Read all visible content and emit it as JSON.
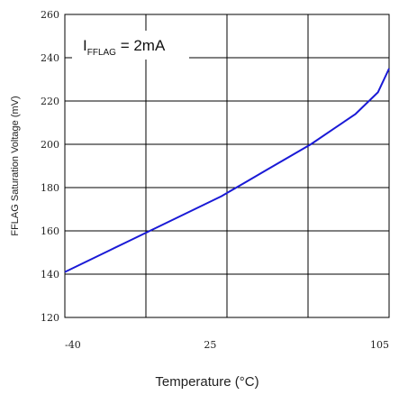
{
  "chart_data": {
    "type": "line",
    "title": "",
    "xlabel": "Temperature (°C)",
    "ylabel": "FFLAG Saturation Voltage (mV)",
    "xlim": [
      -40,
      105
    ],
    "ylim": [
      120,
      260
    ],
    "x_ticks": [
      -40,
      25,
      105
    ],
    "x_tick_labels": [
      "-40",
      "25",
      "105"
    ],
    "y_ticks": [
      120,
      140,
      160,
      180,
      200,
      220,
      240,
      260
    ],
    "y_tick_labels": [
      "120",
      "140",
      "160",
      "180",
      "200",
      "220",
      "240",
      "260"
    ],
    "grid": true,
    "annotation": {
      "base": "I",
      "subscript": "FFLAG",
      "text": " = 2mA"
    },
    "series": [
      {
        "color": "#1a1ad6",
        "x": [
          -40,
          -30,
          -20,
          -10,
          0,
          10,
          20,
          30,
          40,
          50,
          60,
          70,
          80,
          90,
          100,
          105
        ],
        "y": [
          141,
          146,
          151,
          156,
          161,
          166,
          171,
          176,
          182,
          188,
          194,
          200,
          207,
          214,
          224,
          235
        ]
      }
    ]
  }
}
